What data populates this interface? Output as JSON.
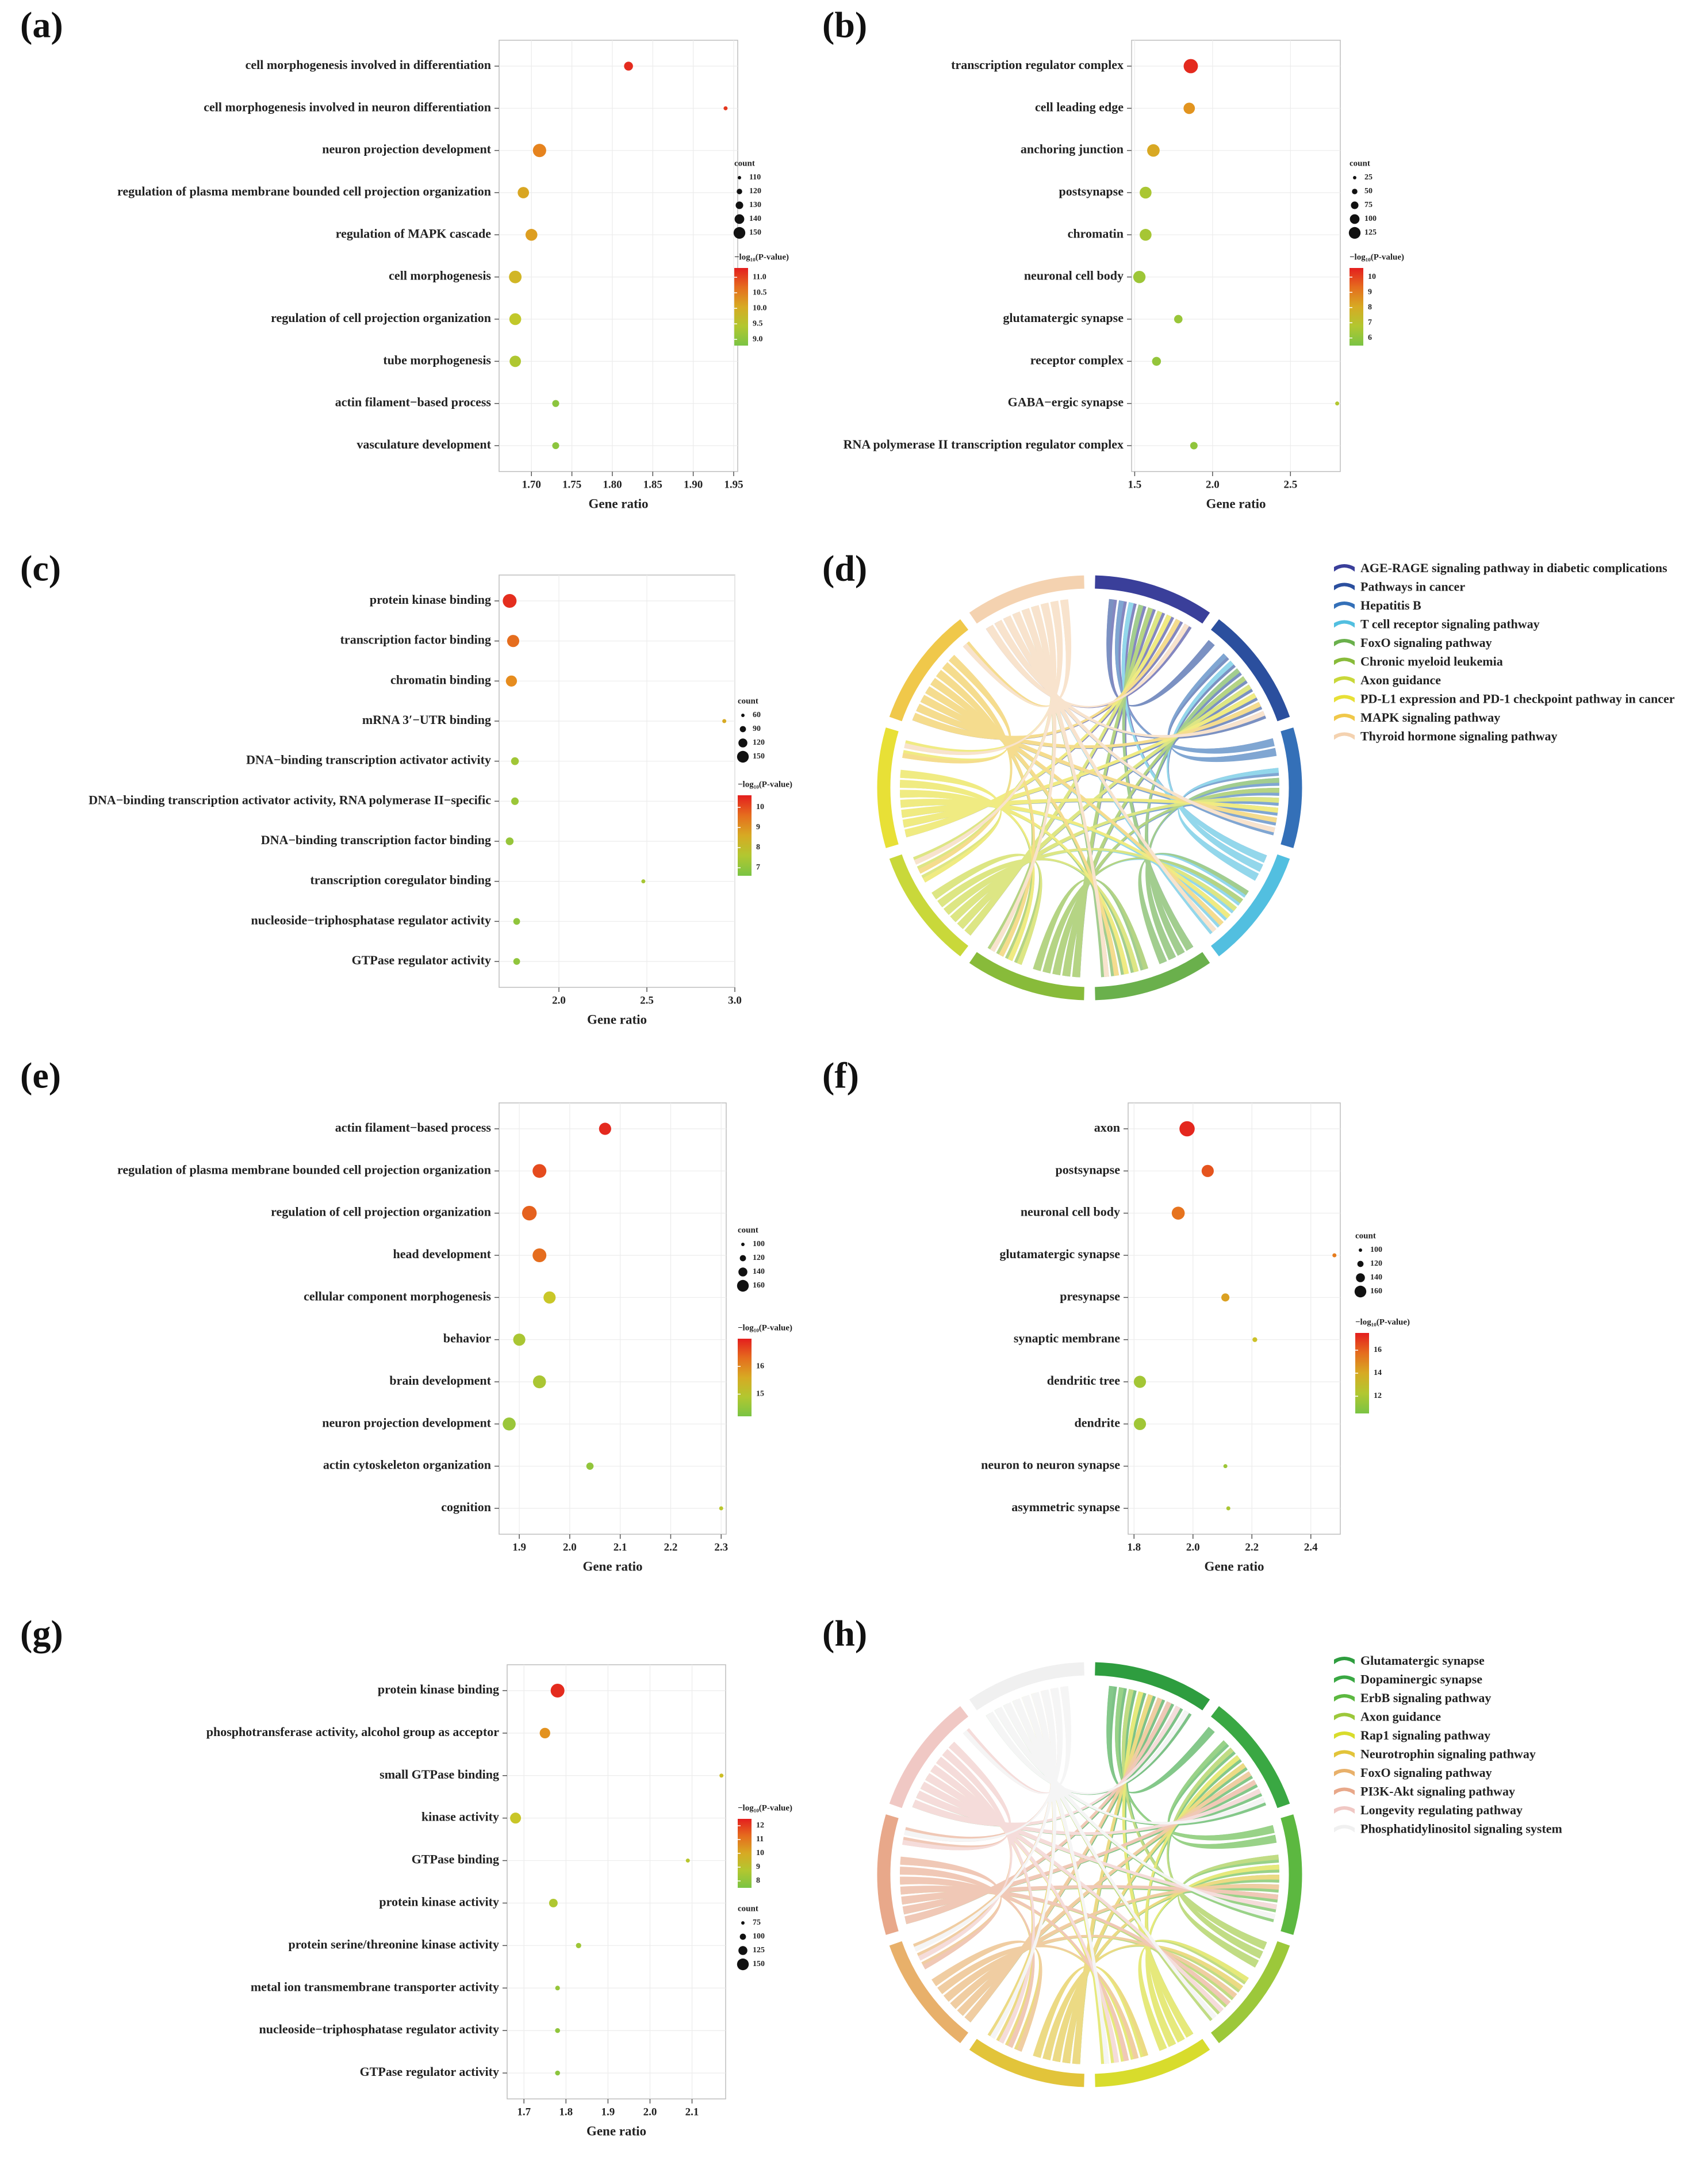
{
  "chart_data": [
    {
      "id": "a",
      "panel_label": "(a)",
      "type": "scatter",
      "xlabel": "Gene ratio",
      "xlim": [
        1.66,
        1.955
      ],
      "xticks": [
        1.7,
        1.75,
        1.8,
        1.85,
        1.9,
        1.95
      ],
      "xtick_labels": [
        "1.70",
        "1.75",
        "1.80",
        "1.85",
        "1.90",
        "1.95"
      ],
      "size_legend_title": "count",
      "size_legend_values": [
        110,
        120,
        130,
        140,
        150
      ],
      "color_legend_title": "−log₁₀(P-value)",
      "color_legend_ticks": [
        11.0,
        10.5,
        10.0,
        9.5,
        9.0
      ],
      "color_legend_labels": [
        "11.0",
        "10.5",
        "10.0",
        "9.5",
        "9.0"
      ],
      "color_range": [
        8.8,
        11.3
      ],
      "terms": [
        {
          "label": "cell morphogenesis involved in differentiation",
          "ratio": 1.82,
          "count": 130,
          "logp": 11.2
        },
        {
          "label": "cell morphogenesis involved in neuron differentiation",
          "ratio": 1.94,
          "count": 100,
          "logp": 11.1
        },
        {
          "label": "neuron projection development",
          "ratio": 1.71,
          "count": 148,
          "logp": 10.5
        },
        {
          "label": "regulation of plasma membrane bounded cell projection organization",
          "ratio": 1.69,
          "count": 140,
          "logp": 10.1
        },
        {
          "label": "regulation of MAPK cascade",
          "ratio": 1.7,
          "count": 142,
          "logp": 10.2
        },
        {
          "label": "cell morphogenesis",
          "ratio": 1.68,
          "count": 145,
          "logp": 9.9
        },
        {
          "label": "regulation of cell projection organization",
          "ratio": 1.68,
          "count": 142,
          "logp": 9.6
        },
        {
          "label": "tube morphogenesis",
          "ratio": 1.68,
          "count": 140,
          "logp": 9.4
        },
        {
          "label": "actin filament−based process",
          "ratio": 1.73,
          "count": 122,
          "logp": 9.0
        },
        {
          "label": "vasculature development",
          "ratio": 1.73,
          "count": 122,
          "logp": 9.0
        }
      ]
    },
    {
      "id": "b",
      "panel_label": "(b)",
      "type": "scatter",
      "xlabel": "Gene ratio",
      "xlim": [
        1.48,
        2.82
      ],
      "xticks": [
        1.5,
        2.0,
        2.5
      ],
      "xtick_labels": [
        "1.5",
        "2.0",
        "2.5"
      ],
      "size_legend_title": "count",
      "size_legend_values": [
        25,
        50,
        75,
        100,
        125
      ],
      "color_legend_title": "−log₁₀(P-value)",
      "color_legend_ticks": [
        10,
        9,
        8,
        7,
        6
      ],
      "color_legend_labels": [
        "10",
        "9",
        "8",
        "7",
        "6"
      ],
      "color_range": [
        5.5,
        10.6
      ],
      "terms": [
        {
          "label": "transcription regulator complex",
          "ratio": 1.86,
          "count": 130,
          "logp": 10.4
        },
        {
          "label": "cell leading edge",
          "ratio": 1.85,
          "count": 100,
          "logp": 8.6
        },
        {
          "label": "anchoring junction",
          "ratio": 1.62,
          "count": 112,
          "logp": 8.1
        },
        {
          "label": "postsynapse",
          "ratio": 1.57,
          "count": 105,
          "logp": 6.6
        },
        {
          "label": "chromatin",
          "ratio": 1.57,
          "count": 105,
          "logp": 6.5
        },
        {
          "label": "neuronal cell body",
          "ratio": 1.53,
          "count": 110,
          "logp": 6.3
        },
        {
          "label": "glutamatergic synapse",
          "ratio": 1.78,
          "count": 70,
          "logp": 6.2
        },
        {
          "label": "receptor complex",
          "ratio": 1.64,
          "count": 75,
          "logp": 6.1
        },
        {
          "label": "GABA−ergic synapse",
          "ratio": 2.8,
          "count": 15,
          "logp": 6.8
        },
        {
          "label": "RNA polymerase II transcription regulator complex",
          "ratio": 1.88,
          "count": 60,
          "logp": 6.0
        }
      ]
    },
    {
      "id": "c",
      "panel_label": "(c)",
      "type": "scatter",
      "xlabel": "Gene ratio",
      "xlim": [
        1.66,
        3.0
      ],
      "xticks": [
        2.0,
        2.5,
        3.0
      ],
      "xtick_labels": [
        "2.0",
        "2.5",
        "3.0"
      ],
      "size_legend_title": "count",
      "size_legend_values": [
        60,
        90,
        120,
        150
      ],
      "color_legend_title": "−log₁₀(P-value)",
      "color_legend_ticks": [
        10,
        9,
        8,
        7
      ],
      "color_legend_labels": [
        "10",
        "9",
        "8",
        "7"
      ],
      "color_range": [
        6.6,
        10.6
      ],
      "terms": [
        {
          "label": "protein kinase binding",
          "ratio": 1.72,
          "count": 150,
          "logp": 10.4
        },
        {
          "label": "transcription factor binding",
          "ratio": 1.74,
          "count": 135,
          "logp": 9.6
        },
        {
          "label": "chromatin binding",
          "ratio": 1.73,
          "count": 125,
          "logp": 9.2
        },
        {
          "label": "mRNA 3′−UTR binding",
          "ratio": 2.94,
          "count": 30,
          "logp": 8.6
        },
        {
          "label": "DNA−binding transcription activator activity",
          "ratio": 1.75,
          "count": 95,
          "logp": 7.3
        },
        {
          "label": "DNA−binding transcription activator activity, RNA polymerase II−specific",
          "ratio": 1.75,
          "count": 92,
          "logp": 7.2
        },
        {
          "label": "DNA−binding transcription factor binding",
          "ratio": 1.72,
          "count": 95,
          "logp": 7.1
        },
        {
          "label": "transcription coregulator binding",
          "ratio": 2.48,
          "count": 30,
          "logp": 7.4
        },
        {
          "label": "nucleoside−triphosphatase regulator activity",
          "ratio": 1.76,
          "count": 85,
          "logp": 7.0
        },
        {
          "label": "GTPase regulator activity",
          "ratio": 1.76,
          "count": 85,
          "logp": 7.0
        }
      ]
    },
    {
      "id": "d",
      "panel_label": "(d)",
      "type": "chord",
      "pathways": [
        {
          "name": "AGE-RAGE signaling pathway in diabetic complications",
          "color": "#3a3f9a"
        },
        {
          "name": "Pathways in cancer",
          "color": "#2b4f9e"
        },
        {
          "name": "Hepatitis B",
          "color": "#3470b8"
        },
        {
          "name": "T cell receptor signaling pathway",
          "color": "#52bfe0"
        },
        {
          "name": "FoxO signaling pathway",
          "color": "#6ab04c"
        },
        {
          "name": "Chronic myeloid leukemia",
          "color": "#88bb3a"
        },
        {
          "name": "Axon guidance",
          "color": "#c9d83a"
        },
        {
          "name": "PD-L1 expression and PD-1 checkpoint pathway in cancer",
          "color": "#e8e036"
        },
        {
          "name": "MAPK signaling pathway",
          "color": "#f0c84a"
        },
        {
          "name": "Thyroid hormone signaling pathway",
          "color": "#f4d2b0"
        }
      ]
    },
    {
      "id": "e",
      "panel_label": "(e)",
      "type": "scatter",
      "xlabel": "Gene ratio",
      "xlim": [
        1.86,
        2.31
      ],
      "xticks": [
        1.9,
        2.0,
        2.1,
        2.2,
        2.3
      ],
      "xtick_labels": [
        "1.9",
        "2.0",
        "2.1",
        "2.2",
        "2.3"
      ],
      "size_legend_title": "count",
      "size_legend_values": [
        100,
        120,
        140,
        160
      ],
      "color_legend_title": "−log₁₀(P-value)",
      "color_legend_ticks": [
        16,
        15
      ],
      "color_legend_labels": [
        "16",
        "15"
      ],
      "color_range": [
        14.2,
        17.0
      ],
      "terms": [
        {
          "label": "actin filament−based process",
          "ratio": 2.07,
          "count": 150,
          "logp": 16.9
        },
        {
          "label": "regulation of plasma membrane bounded cell projection organization",
          "ratio": 1.94,
          "count": 160,
          "logp": 16.6
        },
        {
          "label": "regulation of cell projection organization",
          "ratio": 1.92,
          "count": 165,
          "logp": 16.4
        },
        {
          "label": "head development",
          "ratio": 1.94,
          "count": 160,
          "logp": 16.3
        },
        {
          "label": "cellular component morphogenesis",
          "ratio": 1.96,
          "count": 150,
          "logp": 15.2
        },
        {
          "label": "behavior",
          "ratio": 1.9,
          "count": 150,
          "logp": 14.8
        },
        {
          "label": "brain development",
          "ratio": 1.94,
          "count": 155,
          "logp": 14.8
        },
        {
          "label": "neuron projection development",
          "ratio": 1.88,
          "count": 155,
          "logp": 14.6
        },
        {
          "label": "actin cytoskeleton organization",
          "ratio": 2.04,
          "count": 120,
          "logp": 14.5
        },
        {
          "label": "cognition",
          "ratio": 2.3,
          "count": 80,
          "logp": 15.0
        }
      ]
    },
    {
      "id": "f",
      "panel_label": "(f)",
      "type": "scatter",
      "xlabel": "Gene ratio",
      "xlim": [
        1.78,
        2.5
      ],
      "xticks": [
        1.8,
        2.0,
        2.2,
        2.4
      ],
      "xtick_labels": [
        "1.8",
        "2.0",
        "2.2",
        "2.4"
      ],
      "size_legend_title": "count",
      "size_legend_values": [
        100,
        120,
        140,
        160
      ],
      "color_legend_title": "−log₁₀(P-value)",
      "color_legend_ticks": [
        16,
        14,
        12
      ],
      "color_legend_labels": [
        "16",
        "14",
        "12"
      ],
      "color_range": [
        10.5,
        17.5
      ],
      "terms": [
        {
          "label": "axon",
          "ratio": 1.98,
          "count": 170,
          "logp": 17.3
        },
        {
          "label": "postsynapse",
          "ratio": 2.05,
          "count": 150,
          "logp": 16.3
        },
        {
          "label": "neuronal cell body",
          "ratio": 1.95,
          "count": 155,
          "logp": 15.6
        },
        {
          "label": "glutamatergic synapse",
          "ratio": 2.48,
          "count": 95,
          "logp": 15.4
        },
        {
          "label": "presynapse",
          "ratio": 2.11,
          "count": 125,
          "logp": 14.3
        },
        {
          "label": "synaptic membrane",
          "ratio": 2.21,
          "count": 105,
          "logp": 13.2
        },
        {
          "label": "dendritic tree",
          "ratio": 1.82,
          "count": 150,
          "logp": 11.8
        },
        {
          "label": "dendrite",
          "ratio": 1.82,
          "count": 150,
          "logp": 11.7
        },
        {
          "label": "neuron to neuron synapse",
          "ratio": 2.11,
          "count": 90,
          "logp": 11.6
        },
        {
          "label": "asymmetric synapse",
          "ratio": 2.12,
          "count": 80,
          "logp": 12.0
        }
      ]
    },
    {
      "id": "g",
      "panel_label": "(g)",
      "type": "scatter",
      "xlabel": "Gene ratio",
      "xlim": [
        1.66,
        2.18
      ],
      "xticks": [
        1.7,
        1.8,
        1.9,
        2.0,
        2.1
      ],
      "xtick_labels": [
        "1.7",
        "1.8",
        "1.9",
        "2.0",
        "2.1"
      ],
      "size_legend_title": "count",
      "size_legend_values": [
        75,
        100,
        125,
        150
      ],
      "color_legend_title": "−log₁₀(P-value)",
      "color_legend_ticks": [
        12,
        11,
        10,
        9,
        8
      ],
      "color_legend_labels": [
        "12",
        "11",
        "10",
        "9",
        "8"
      ],
      "color_range": [
        7.5,
        12.5
      ],
      "terms": [
        {
          "label": "protein kinase binding",
          "ratio": 1.78,
          "count": 150,
          "logp": 12.3
        },
        {
          "label": "phosphotransferase activity, alcohol group as acceptor",
          "ratio": 1.75,
          "count": 125,
          "logp": 10.6
        },
        {
          "label": "small GTPase binding",
          "ratio": 2.17,
          "count": 50,
          "logp": 9.5
        },
        {
          "label": "kinase activity",
          "ratio": 1.68,
          "count": 128,
          "logp": 9.3
        },
        {
          "label": "GTPase binding",
          "ratio": 2.09,
          "count": 60,
          "logp": 8.9
        },
        {
          "label": "protein kinase activity",
          "ratio": 1.77,
          "count": 110,
          "logp": 8.7
        },
        {
          "label": "protein serine/threonine kinase activity",
          "ratio": 1.83,
          "count": 85,
          "logp": 8.3
        },
        {
          "label": "metal ion transmembrane transporter activity",
          "ratio": 1.78,
          "count": 80,
          "logp": 8.1
        },
        {
          "label": "nucleoside−triphosphatase regulator activity",
          "ratio": 1.78,
          "count": 82,
          "logp": 8.0
        },
        {
          "label": "GTPase regulator activity",
          "ratio": 1.78,
          "count": 82,
          "logp": 7.9
        }
      ]
    },
    {
      "id": "h",
      "panel_label": "(h)",
      "type": "chord",
      "pathways": [
        {
          "name": "Glutamatergic synapse",
          "color": "#2e9d3f"
        },
        {
          "name": "Dopaminergic synapse",
          "color": "#3aa843"
        },
        {
          "name": "ErbB signaling pathway",
          "color": "#5cb840"
        },
        {
          "name": "Axon guidance",
          "color": "#9cc83a"
        },
        {
          "name": "Rap1 signaling pathway",
          "color": "#d8dc2c"
        },
        {
          "name": "Neurotrophin signaling pathway",
          "color": "#e2c43a"
        },
        {
          "name": "FoxO signaling pathway",
          "color": "#e8b06a"
        },
        {
          "name": "PI3K-Akt signaling pathway",
          "color": "#e8a88a"
        },
        {
          "name": "Longevity regulating pathway",
          "color": "#f0c8c4"
        },
        {
          "name": "Phosphatidylinositol signaling system",
          "color": "#f0f0f0"
        }
      ]
    }
  ]
}
